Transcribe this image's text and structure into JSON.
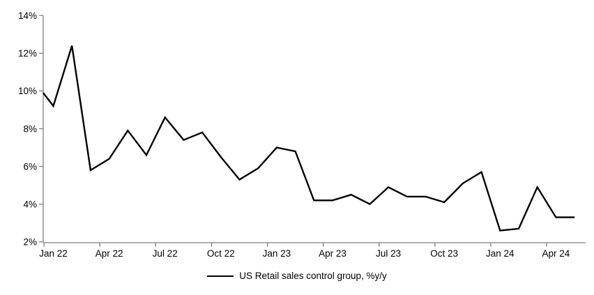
{
  "legend": {
    "label": "US Retail sales control group, %y/y"
  },
  "chart_data": {
    "type": "line",
    "title": "",
    "xlabel": "",
    "ylabel": "",
    "grid": false,
    "legend_position": "bottom-center",
    "background_color": "#ffffff",
    "axis_color": "#808080",
    "text_color": "#000000",
    "x": [
      "Dec 21",
      "Jan 22",
      "Feb 22",
      "Mar 22",
      "Apr 22",
      "May 22",
      "Jun 22",
      "Jul 22",
      "Aug 22",
      "Sep 22",
      "Oct 22",
      "Nov 22",
      "Dec 22",
      "Jan 23",
      "Feb 23",
      "Mar 23",
      "Apr 23",
      "May 23",
      "Jun 23",
      "Jul 23",
      "Aug 23",
      "Sep 23",
      "Oct 23",
      "Nov 23",
      "Dec 23",
      "Jan 24",
      "Feb 24",
      "Mar 24",
      "Apr 24",
      "May 24"
    ],
    "series": [
      {
        "name": "US Retail sales control group, %y/y",
        "color": "#000000",
        "line_width": 2.4,
        "values": [
          9.9,
          9.2,
          12.4,
          5.8,
          6.4,
          7.9,
          6.6,
          8.6,
          7.4,
          7.8,
          6.5,
          5.3,
          5.9,
          7.0,
          6.8,
          4.2,
          4.2,
          4.5,
          4.0,
          4.9,
          4.4,
          4.4,
          4.1,
          5.1,
          5.7,
          2.6,
          2.7,
          4.9,
          3.3,
          3.3
        ]
      }
    ],
    "x_ticks": [
      {
        "label": "Jan 22",
        "index": 1
      },
      {
        "label": "Apr 22",
        "index": 4
      },
      {
        "label": "Jul 22",
        "index": 7
      },
      {
        "label": "Oct 22",
        "index": 10
      },
      {
        "label": "Jan 23",
        "index": 13
      },
      {
        "label": "Apr 23",
        "index": 16
      },
      {
        "label": "Jul 23",
        "index": 19
      },
      {
        "label": "Oct 23",
        "index": 22
      },
      {
        "label": "Jan 24",
        "index": 25
      },
      {
        "label": "Apr 24",
        "index": 28
      }
    ],
    "y_axis": {
      "min": 2,
      "max": 14,
      "step": 2,
      "suffix": "%",
      "tick_labels": [
        "2%",
        "4%",
        "6%",
        "8%",
        "10%",
        "12%",
        "14%"
      ]
    }
  }
}
